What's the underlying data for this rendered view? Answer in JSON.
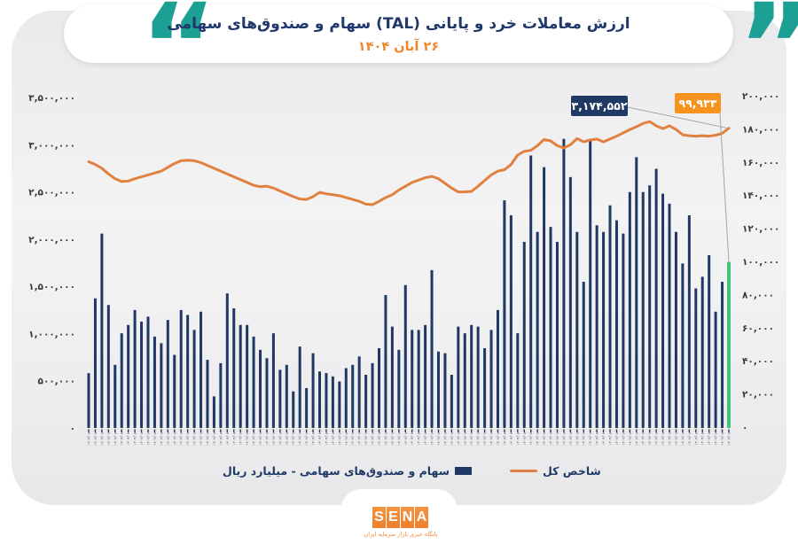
{
  "header": {
    "title": "ارزش معاملات خرد و پایانی (TAL) سهام و صندوق‌های سهامی",
    "date": "۲۶ آبان ۱۴۰۴",
    "open_quote": "“",
    "close_quote": "”"
  },
  "colors": {
    "teal": "#1ba093",
    "navy": "#1f3864",
    "orange_line": "#e2813f",
    "orange_accent": "#f6921e",
    "green_last_bar": "#3ec57b",
    "panel_gray": "#ececed"
  },
  "legend": {
    "bar_label": "سهام و صندوق‌های سهامی - میلیارد ریال",
    "line_label": "شاخص کل"
  },
  "footer": {
    "logo_letters": [
      "S",
      "E",
      "N",
      "A"
    ],
    "tagline": "پایگاه خبری بازار سرمایه ایران"
  },
  "chart_data": {
    "type": "bar",
    "title": "ارزش معاملات خرد و پایانی (TAL) سهام و صندوق‌های سهامی",
    "subtitle": "۲۶ آبان ۱۴۰۴",
    "grid": false,
    "legend_position": "bottom",
    "left_axis": {
      "min": 0,
      "max": 3500000,
      "ticks": [
        "۳,۵۰۰,۰۰۰",
        "۳,۰۰۰,۰۰۰",
        "۲,۵۰۰,۰۰۰",
        "۲,۰۰۰,۰۰۰",
        "۱,۵۰۰,۰۰۰",
        "۱,۰۰۰,۰۰۰",
        "۵۰۰,۰۰۰",
        "۰"
      ]
    },
    "right_axis": {
      "min": 0,
      "max": 200000,
      "ticks": [
        "۲۰۰,۰۰۰",
        "۱۸۰,۰۰۰",
        "۱۶۰,۰۰۰",
        "۱۴۰,۰۰۰",
        "۱۲۰,۰۰۰",
        "۱۰۰,۰۰۰",
        "۸۰,۰۰۰",
        "۶۰,۰۰۰",
        "۴۰,۰۰۰",
        "۲۰,۰۰۰",
        "۰"
      ]
    },
    "x_axis": {
      "tick_label": "۱۴۰۴/۰۸"
    },
    "bar_series": {
      "name": "سهام و صندوق‌های سهامی - میلیارد ریال",
      "axis": "right",
      "color": "#1f3864",
      "last_value_color": "#3ec57b",
      "last_value": 99933,
      "values": [
        33000,
        78000,
        117000,
        74000,
        38000,
        57000,
        62000,
        71000,
        64000,
        67000,
        55000,
        51000,
        65000,
        44000,
        71000,
        68000,
        59000,
        70000,
        41000,
        19000,
        39000,
        81000,
        72000,
        62000,
        62000,
        55000,
        47000,
        42000,
        57000,
        35000,
        38000,
        22000,
        49000,
        24000,
        45000,
        34000,
        33000,
        31000,
        28000,
        36000,
        38000,
        43000,
        32000,
        39000,
        48000,
        80000,
        61000,
        47000,
        86000,
        59000,
        59000,
        62000,
        95000,
        46000,
        45000,
        32000,
        61000,
        57000,
        62000,
        61000,
        48000,
        59000,
        71000,
        137000,
        128000,
        57000,
        112000,
        164000,
        118000,
        157000,
        121000,
        112000,
        174000,
        151000,
        118000,
        88000,
        174000,
        122000,
        118000,
        134000,
        125000,
        117000,
        142000,
        163000,
        142000,
        146000,
        156000,
        141000,
        135000,
        118000,
        99000,
        128000,
        84000,
        91000,
        104000,
        70000,
        88000,
        99933
      ]
    },
    "line_series": {
      "name": "شاخص کل",
      "axis": "left",
      "color": "#e2813f",
      "last_value": 3174552,
      "values": [
        2820000,
        2790000,
        2750000,
        2690000,
        2640000,
        2610000,
        2615000,
        2640000,
        2660000,
        2680000,
        2700000,
        2720000,
        2760000,
        2800000,
        2830000,
        2835000,
        2830000,
        2810000,
        2780000,
        2750000,
        2720000,
        2690000,
        2660000,
        2630000,
        2600000,
        2570000,
        2555000,
        2560000,
        2540000,
        2510000,
        2480000,
        2450000,
        2425000,
        2420000,
        2450000,
        2495000,
        2480000,
        2470000,
        2460000,
        2440000,
        2420000,
        2400000,
        2370000,
        2365000,
        2400000,
        2440000,
        2470000,
        2520000,
        2560000,
        2600000,
        2625000,
        2650000,
        2665000,
        2640000,
        2590000,
        2540000,
        2500000,
        2500000,
        2505000,
        2560000,
        2620000,
        2680000,
        2720000,
        2735000,
        2790000,
        2890000,
        2930000,
        2940000,
        2990000,
        3055000,
        3040000,
        2990000,
        2965000,
        3000000,
        3065000,
        3030000,
        3050000,
        3060000,
        3030000,
        3060000,
        3090000,
        3125000,
        3160000,
        3190000,
        3225000,
        3245000,
        3200000,
        3170000,
        3200000,
        3160000,
        3105000,
        3095000,
        3090000,
        3095000,
        3090000,
        3100000,
        3120000,
        3174552
      ]
    },
    "annotations": [
      {
        "text": "۳,۱۷۴,۵۵۲",
        "box_color": "#1f3864",
        "points_to": "line-last-point"
      },
      {
        "text": "۹۹,۹۳۳",
        "box_color": "#f6921e",
        "points_to": "last-bar-top"
      }
    ]
  }
}
